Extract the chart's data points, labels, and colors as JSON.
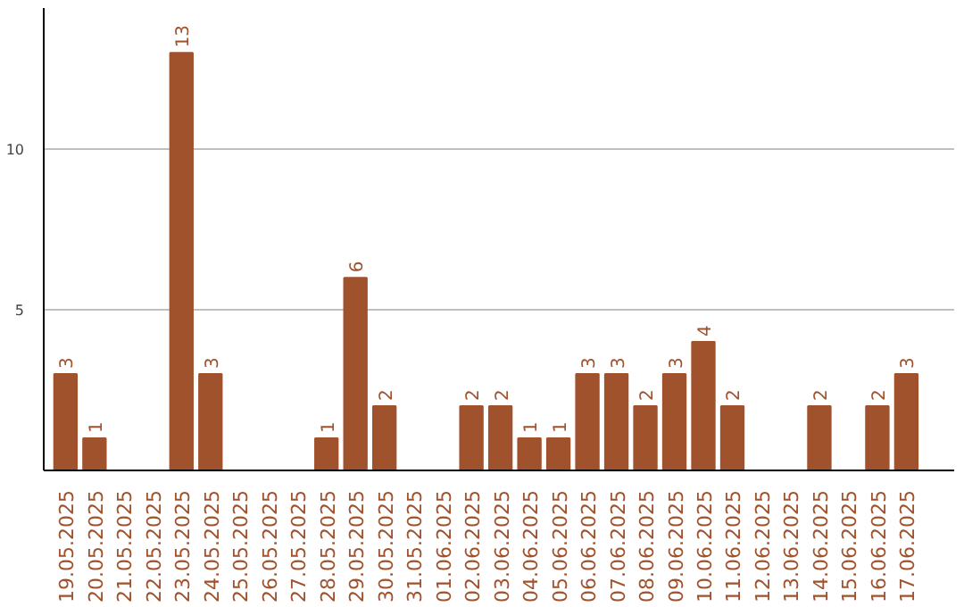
{
  "chart_data": {
    "type": "bar",
    "categories": [
      "19.05.2025",
      "20.05.2025",
      "21.05.2025",
      "22.05.2025",
      "23.05.2025",
      "24.05.2025",
      "25.05.2025",
      "26.05.2025",
      "27.05.2025",
      "28.05.2025",
      "29.05.2025",
      "30.05.2025",
      "31.05.2025",
      "01.06.2025",
      "02.06.2025",
      "03.06.2025",
      "04.06.2025",
      "05.06.2025",
      "06.06.2025",
      "07.06.2025",
      "08.06.2025",
      "09.06.2025",
      "10.06.2025",
      "11.06.2025",
      "12.06.2025",
      "13.06.2025",
      "14.06.2025",
      "15.06.2025",
      "16.06.2025",
      "17.06.2025"
    ],
    "values": [
      3,
      1,
      0,
      0,
      13,
      3,
      0,
      0,
      0,
      1,
      6,
      2,
      0,
      0,
      2,
      2,
      1,
      1,
      3,
      3,
      2,
      3,
      4,
      2,
      0,
      0,
      2,
      0,
      2,
      3
    ],
    "value_labels": [
      "3",
      "1",
      null,
      null,
      "13",
      "3",
      null,
      null,
      null,
      "1",
      "6",
      "2",
      null,
      null,
      "2",
      "2",
      "1",
      "1",
      "3",
      "3",
      "2",
      "3",
      "4",
      "2",
      null,
      null,
      "2",
      null,
      "2",
      "3"
    ],
    "color": "#a0522d",
    "ylim": [
      0,
      14.4
    ],
    "yticks": [
      5,
      10
    ],
    "grid": "y"
  }
}
